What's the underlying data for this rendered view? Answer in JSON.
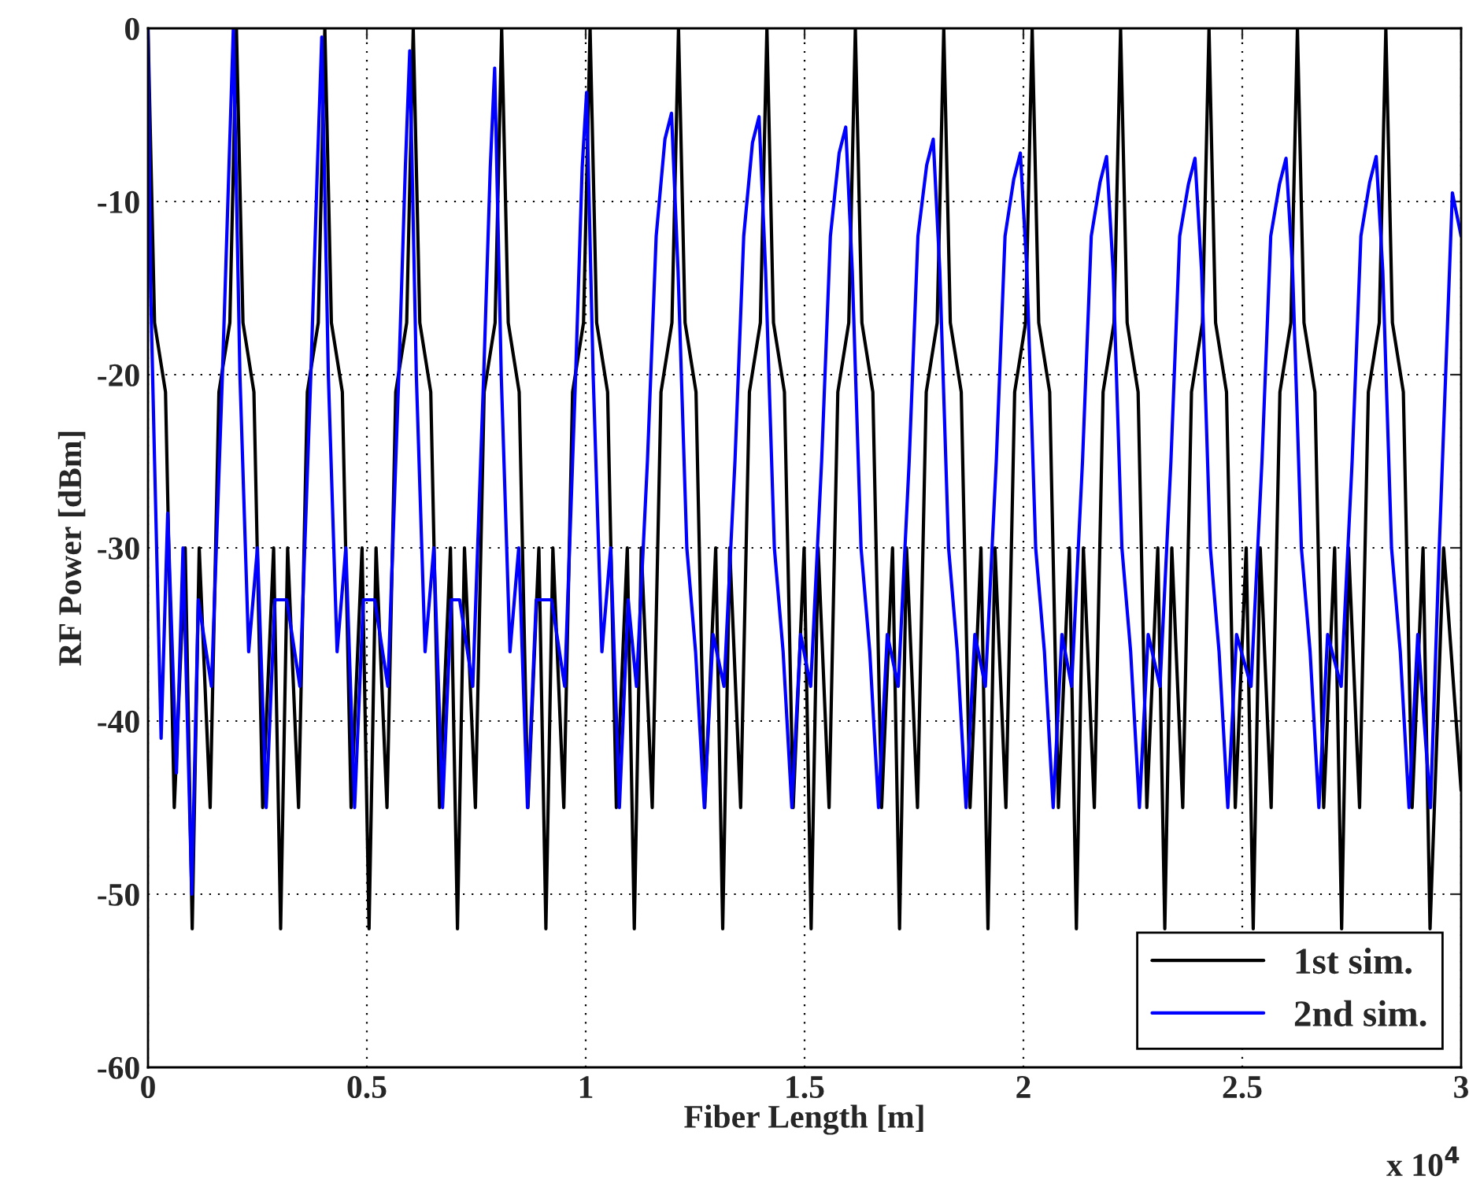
{
  "chart_data": {
    "type": "line",
    "xlabel": "Fiber Length [m]",
    "ylabel": "RF Power [dBm]",
    "xlim": [
      0,
      3
    ],
    "ylim": [
      -60,
      0
    ],
    "xticks": [
      0,
      0.5,
      1,
      1.5,
      2,
      2.5,
      3
    ],
    "yticks": [
      -60,
      -50,
      -40,
      -30,
      -20,
      -10,
      0
    ],
    "grid": true,
    "legend": "bottom right",
    "line_style": "solid",
    "marker": "none",
    "annotations": [
      "x 10$^{4}$"
    ],
    "series": [
      {
        "name": "1st sim.",
        "color": "#000000",
        "x": [
          0,
          0.015,
          0.04,
          0.06,
          0.085,
          0.101,
          0.117,
          0.142,
          0.162,
          0.187,
          0.202,
          0.217,
          0.242,
          0.262,
          0.287,
          0.303,
          0.319,
          0.344,
          0.364,
          0.389,
          0.404,
          0.419,
          0.444,
          0.464,
          0.489,
          0.505,
          0.521,
          0.546,
          0.566,
          0.591,
          0.606,
          0.621,
          0.646,
          0.666,
          0.691,
          0.707,
          0.723,
          0.748,
          0.768,
          0.793,
          0.808,
          0.823,
          0.848,
          0.868,
          0.893,
          0.909,
          0.925,
          0.95,
          0.97,
          0.995,
          1.01,
          1.025,
          1.05,
          1.07,
          1.095,
          1.111,
          1.127,
          1.152,
          1.172,
          1.197,
          1.212,
          1.227,
          1.252,
          1.272,
          1.297,
          1.313,
          1.329,
          1.354,
          1.374,
          1.399,
          1.414,
          1.429,
          1.454,
          1.474,
          1.499,
          1.515,
          1.531,
          1.556,
          1.576,
          1.601,
          1.616,
          1.631,
          1.656,
          1.676,
          1.701,
          1.717,
          1.733,
          1.758,
          1.778,
          1.803,
          1.818,
          1.833,
          1.858,
          1.878,
          1.903,
          1.919,
          1.935,
          1.96,
          1.98,
          2.005,
          2.02,
          2.035,
          2.06,
          2.08,
          2.105,
          2.121,
          2.137,
          2.162,
          2.182,
          2.207,
          2.222,
          2.237,
          2.262,
          2.282,
          2.307,
          2.323,
          2.339,
          2.364,
          2.384,
          2.409,
          2.424,
          2.439,
          2.464,
          2.484,
          2.509,
          2.525,
          2.541,
          2.566,
          2.586,
          2.611,
          2.626,
          2.641,
          2.666,
          2.686,
          2.711,
          2.727,
          2.743,
          2.768,
          2.788,
          2.813,
          2.828,
          2.843,
          2.868,
          2.888,
          2.913,
          2.929,
          2.96,
          3.0
        ],
        "values": [
          0,
          -17,
          -21,
          -45,
          -30,
          -52,
          -30,
          -45,
          -21,
          -17,
          0,
          -17,
          -21,
          -45,
          -30,
          -52,
          -30,
          -45,
          -21,
          -17,
          0,
          -17,
          -21,
          -45,
          -30,
          -52,
          -30,
          -45,
          -21,
          -17,
          0,
          -17,
          -21,
          -45,
          -30,
          -52,
          -30,
          -45,
          -21,
          -17,
          0,
          -17,
          -21,
          -45,
          -30,
          -52,
          -30,
          -45,
          -21,
          -17,
          0,
          -17,
          -21,
          -45,
          -30,
          -52,
          -30,
          -45,
          -21,
          -17,
          0,
          -17,
          -21,
          -45,
          -30,
          -52,
          -30,
          -45,
          -21,
          -17,
          0,
          -17,
          -21,
          -45,
          -30,
          -52,
          -30,
          -45,
          -21,
          -17,
          0,
          -17,
          -21,
          -45,
          -30,
          -52,
          -30,
          -45,
          -21,
          -17,
          0,
          -17,
          -21,
          -45,
          -30,
          -52,
          -30,
          -45,
          -21,
          -17,
          0,
          -17,
          -21,
          -45,
          -30,
          -52,
          -30,
          -45,
          -21,
          -17,
          0,
          -17,
          -21,
          -45,
          -30,
          -52,
          -30,
          -45,
          -21,
          -17,
          0,
          -17,
          -21,
          -45,
          -30,
          -52,
          -30,
          -45,
          -21,
          -17,
          0,
          -17,
          -21,
          -45,
          -30,
          -52,
          -30,
          -45,
          -21,
          -17,
          0,
          -17,
          -21,
          -45,
          -30,
          -52,
          -30,
          -44
        ]
      },
      {
        "name": "2nd sim.",
        "color": "#0000ff",
        "x": [
          0,
          0.006,
          0.015,
          0.03,
          0.045,
          0.065,
          0.08,
          0.1,
          0.115,
          0.145,
          0.17,
          0.185,
          0.195,
          0.21,
          0.23,
          0.25,
          0.27,
          0.29,
          0.317,
          0.347,
          0.372,
          0.387,
          0.397,
          0.412,
          0.432,
          0.452,
          0.472,
          0.492,
          0.518,
          0.548,
          0.573,
          0.588,
          0.598,
          0.613,
          0.633,
          0.653,
          0.673,
          0.693,
          0.712,
          0.742,
          0.767,
          0.782,
          0.792,
          0.807,
          0.827,
          0.847,
          0.867,
          0.887,
          0.922,
          0.952,
          0.977,
          0.992,
          1.002,
          1.017,
          1.037,
          1.057,
          1.077,
          1.097,
          1.116,
          1.141,
          1.161,
          1.181,
          1.196,
          1.211,
          1.231,
          1.251,
          1.271,
          1.291,
          1.316,
          1.341,
          1.361,
          1.381,
          1.396,
          1.411,
          1.431,
          1.451,
          1.471,
          1.491,
          1.514,
          1.539,
          1.559,
          1.579,
          1.594,
          1.609,
          1.629,
          1.649,
          1.669,
          1.689,
          1.714,
          1.739,
          1.759,
          1.779,
          1.794,
          1.809,
          1.829,
          1.849,
          1.869,
          1.889,
          1.913,
          1.938,
          1.958,
          1.978,
          1.993,
          2.008,
          2.028,
          2.048,
          2.068,
          2.088,
          2.11,
          2.135,
          2.155,
          2.175,
          2.19,
          2.205,
          2.225,
          2.245,
          2.265,
          2.285,
          2.312,
          2.337,
          2.357,
          2.377,
          2.392,
          2.407,
          2.427,
          2.447,
          2.467,
          2.487,
          2.52,
          2.545,
          2.565,
          2.585,
          2.6,
          2.615,
          2.635,
          2.655,
          2.675,
          2.695,
          2.726,
          2.751,
          2.771,
          2.791,
          2.806,
          2.821,
          2.841,
          2.861,
          2.881,
          2.901,
          2.93,
          2.95,
          2.98,
          3.0
        ],
        "values": [
          0,
          -15,
          -25,
          -41,
          -28,
          -43,
          -30,
          -50,
          -33,
          -38,
          -20,
          -8,
          0,
          -20,
          -36,
          -30,
          -45,
          -33,
          -33,
          -38,
          -20,
          -8,
          -0.5,
          -20,
          -36,
          -30,
          -45,
          -33,
          -33,
          -38,
          -20,
          -8,
          -1.3,
          -20,
          -36,
          -30,
          -45,
          -33,
          -33,
          -38,
          -20,
          -8,
          -2.3,
          -20,
          -36,
          -30,
          -45,
          -33,
          -33,
          -38,
          -20,
          -8,
          -3.7,
          -20,
          -36,
          -30,
          -45,
          -33,
          -38,
          -25,
          -12,
          -6.4,
          -4.9,
          -14,
          -30,
          -36,
          -45,
          -35,
          -38,
          -25,
          -12,
          -6.6,
          -5.1,
          -14,
          -30,
          -36,
          -45,
          -35,
          -38,
          -25,
          -12,
          -7.2,
          -5.7,
          -14,
          -30,
          -36,
          -45,
          -35,
          -38,
          -25,
          -12,
          -7.9,
          -6.4,
          -14,
          -30,
          -36,
          -45,
          -35,
          -38,
          -25,
          -12,
          -8.7,
          -7.2,
          -14,
          -30,
          -36,
          -45,
          -35,
          -38,
          -25,
          -12,
          -8.9,
          -7.4,
          -14,
          -30,
          -36,
          -45,
          -35,
          -38,
          -25,
          -12,
          -9,
          -7.5,
          -14,
          -30,
          -36,
          -45,
          -35,
          -38,
          -25,
          -12,
          -9,
          -7.5,
          -14,
          -30,
          -36,
          -45,
          -35,
          -38,
          -25,
          -12,
          -8.9,
          -7.4,
          -14,
          -30,
          -36,
          -45,
          -35,
          -45,
          -30,
          -9.5,
          -12
        ]
      }
    ]
  }
}
